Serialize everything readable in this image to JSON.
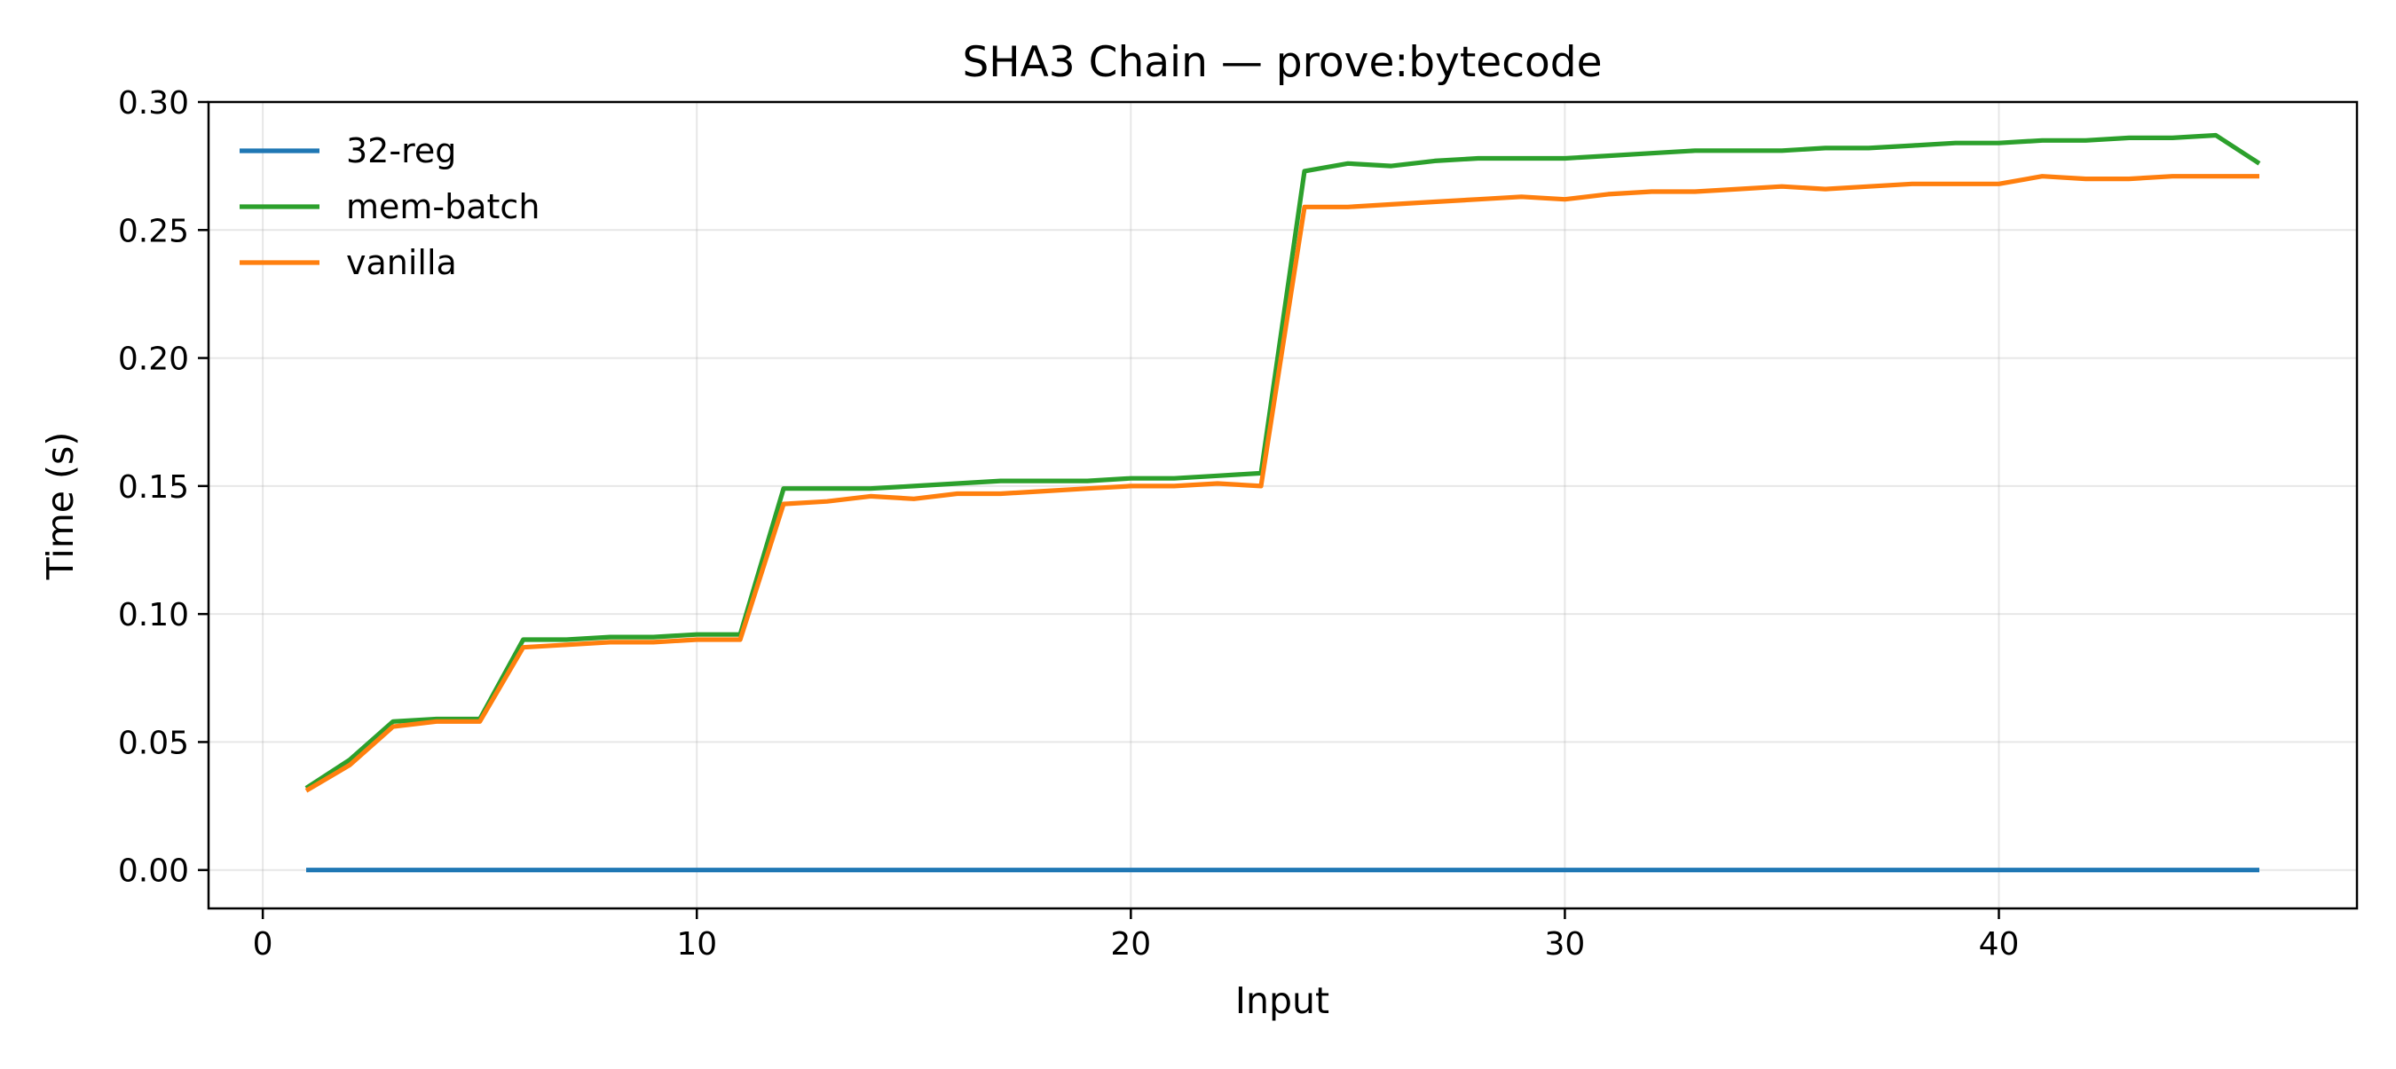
{
  "chart_data": {
    "type": "line",
    "title": "SHA3 Chain — prove:bytecode",
    "xlabel": "Input",
    "ylabel": "Time (s)",
    "xlim": [
      -1.25,
      48.25
    ],
    "ylim": [
      -0.015,
      0.3
    ],
    "xticks": [
      0,
      10,
      20,
      30,
      40
    ],
    "xtick_labels": [
      "0",
      "10",
      "20",
      "30",
      "40"
    ],
    "yticks": [
      0.0,
      0.05,
      0.1,
      0.15,
      0.2,
      0.25,
      0.3
    ],
    "ytick_labels": [
      "0.00",
      "0.05",
      "0.10",
      "0.15",
      "0.20",
      "0.25",
      "0.30"
    ],
    "grid": true,
    "legend_position": "top-left",
    "x": [
      1,
      2,
      3,
      4,
      5,
      6,
      7,
      8,
      9,
      10,
      11,
      12,
      13,
      14,
      15,
      16,
      17,
      18,
      19,
      20,
      21,
      22,
      23,
      24,
      25,
      26,
      27,
      28,
      29,
      30,
      31,
      32,
      33,
      34,
      35,
      36,
      37,
      38,
      39,
      40,
      41,
      42,
      43,
      44,
      45,
      46
    ],
    "series": [
      {
        "name": "32-reg",
        "color": "#1f77b4",
        "values": [
          0,
          0,
          0,
          0,
          0,
          0,
          0,
          0,
          0,
          0,
          0,
          0,
          0,
          0,
          0,
          0,
          0,
          0,
          0,
          0,
          0,
          0,
          0,
          0,
          0,
          0,
          0,
          0,
          0,
          0,
          0,
          0,
          0,
          0,
          0,
          0,
          0,
          0,
          0,
          0,
          0,
          0,
          0,
          0,
          0,
          0
        ]
      },
      {
        "name": "mem-batch",
        "color": "#2ca02c",
        "values": [
          0.032,
          0.043,
          0.058,
          0.059,
          0.059,
          0.09,
          0.09,
          0.091,
          0.091,
          0.092,
          0.092,
          0.149,
          0.149,
          0.149,
          0.15,
          0.151,
          0.152,
          0.152,
          0.152,
          0.153,
          0.153,
          0.154,
          0.155,
          0.273,
          0.276,
          0.275,
          0.277,
          0.278,
          0.278,
          0.278,
          0.279,
          0.28,
          0.281,
          0.281,
          0.281,
          0.282,
          0.282,
          0.283,
          0.284,
          0.284,
          0.285,
          0.285,
          0.286,
          0.286,
          0.287,
          0.276
        ]
      },
      {
        "name": "vanilla",
        "color": "#ff7f0e",
        "values": [
          0.031,
          0.041,
          0.056,
          0.058,
          0.058,
          0.087,
          0.088,
          0.089,
          0.089,
          0.09,
          0.09,
          0.143,
          0.144,
          0.146,
          0.145,
          0.147,
          0.147,
          0.148,
          0.149,
          0.15,
          0.15,
          0.151,
          0.15,
          0.259,
          0.259,
          0.26,
          0.261,
          0.262,
          0.263,
          0.262,
          0.264,
          0.265,
          0.265,
          0.266,
          0.267,
          0.266,
          0.267,
          0.268,
          0.268,
          0.268,
          0.271,
          0.27,
          0.27,
          0.271,
          0.271,
          0.271
        ]
      }
    ]
  }
}
